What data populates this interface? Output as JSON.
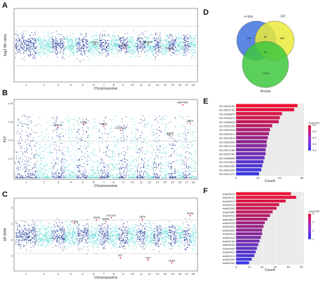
{
  "panels": {
    "A": {
      "letter": "A",
      "ylabel": "log2 θπ ratio",
      "xlabel": "Chromosome",
      "genes": [
        "CDK6",
        "GCMAT",
        "NOHM",
        "SMAD2"
      ]
    },
    "B": {
      "letter": "B",
      "ylabel": "FST",
      "xlabel": "Chromosome",
      "genes": [
        "ERCC6",
        "LY96L",
        "FBN3",
        "COL28A1",
        "ADIPOR2",
        "LBP3",
        "BMP4"
      ],
      "yticks": [
        "0.8",
        "0.6",
        "0.4",
        "0.2"
      ]
    },
    "C": {
      "letter": "C",
      "ylabel": "XP-EHH",
      "xlabel": "Chromosome",
      "genes": [
        "CDH2",
        "GDF8",
        "COL2A1",
        "MAPK",
        "LRP5",
        "KIT",
        "CAT",
        "CDK2",
        "SOX9"
      ],
      "yticks": [
        "4",
        "2",
        "0",
        "-2"
      ]
    },
    "chromosomes": [
      "1",
      "2",
      "3",
      "4",
      "5",
      "6",
      "7",
      "8",
      "9",
      "10",
      "11",
      "12",
      "13",
      "14",
      "15",
      "16",
      "17",
      "18"
    ],
    "D": {
      "letter": "D",
      "sets": [
        "x-ratio",
        "FST",
        "XP-EHH"
      ],
      "counts": [
        "292",
        "65",
        "849",
        "29",
        "1276"
      ]
    },
    "E": {
      "letter": "E",
      "xlabel": "Count",
      "legend_title": "-log10(P)",
      "legend_ticks": [
        "5.0",
        "4.5",
        "4.0",
        "3.5",
        "3.0"
      ],
      "terms": [
        "GO:0030100",
        "GO:0007155",
        "GO:0048870",
        "GO:0016477",
        "GO:0006928",
        "GO:0030155",
        "GO:0050678",
        "GO:0040011",
        "GO:0022610",
        "GO:0030334",
        "GO:0051270",
        "GO:0007166",
        "GO:0045785",
        "GO:0048646",
        "GO:0010810",
        "GO:0030335",
        "GO:0001525",
        "GO:0051272"
      ],
      "values": [
        56,
        53,
        42,
        40,
        39,
        33,
        31,
        30,
        29,
        28,
        28,
        27,
        27,
        26,
        25,
        24,
        23,
        21
      ],
      "xticks": [
        "0",
        "20",
        "40",
        "60"
      ]
    },
    "F": {
      "letter": "F",
      "xlabel": "Count",
      "legend_title": "-log10(P)",
      "legend_ticks": [
        "4",
        "3",
        "2",
        "1"
      ],
      "terms": [
        "bta04510",
        "bta04151",
        "bta04015",
        "bta04014",
        "bta05200",
        "bta04360",
        "bta04512",
        "bta04810",
        "bta04020",
        "bta04024",
        "bta04390",
        "bta04010",
        "bta04310",
        "bta04144",
        "bta04550",
        "bta04530",
        "bta04921",
        "bta04211",
        "bta04350",
        "bta04340"
      ],
      "values": [
        42,
        46,
        38,
        33,
        31,
        28,
        26,
        24,
        22,
        21,
        20,
        20,
        19,
        18,
        17,
        16,
        15,
        14,
        12,
        10
      ],
      "xticks": [
        "0",
        "10",
        "20",
        "30",
        "40",
        "50"
      ]
    }
  },
  "colors": {
    "dark": "#1f3d9a",
    "light": "#4fd6d2",
    "threshold": "#888888",
    "vennBlue": "#4a7be0",
    "vennYellow": "#eaea3a",
    "vennGreen": "#3ec83e",
    "gradTop": "#ee1030",
    "gradBottom": "#3a3ae8"
  }
}
